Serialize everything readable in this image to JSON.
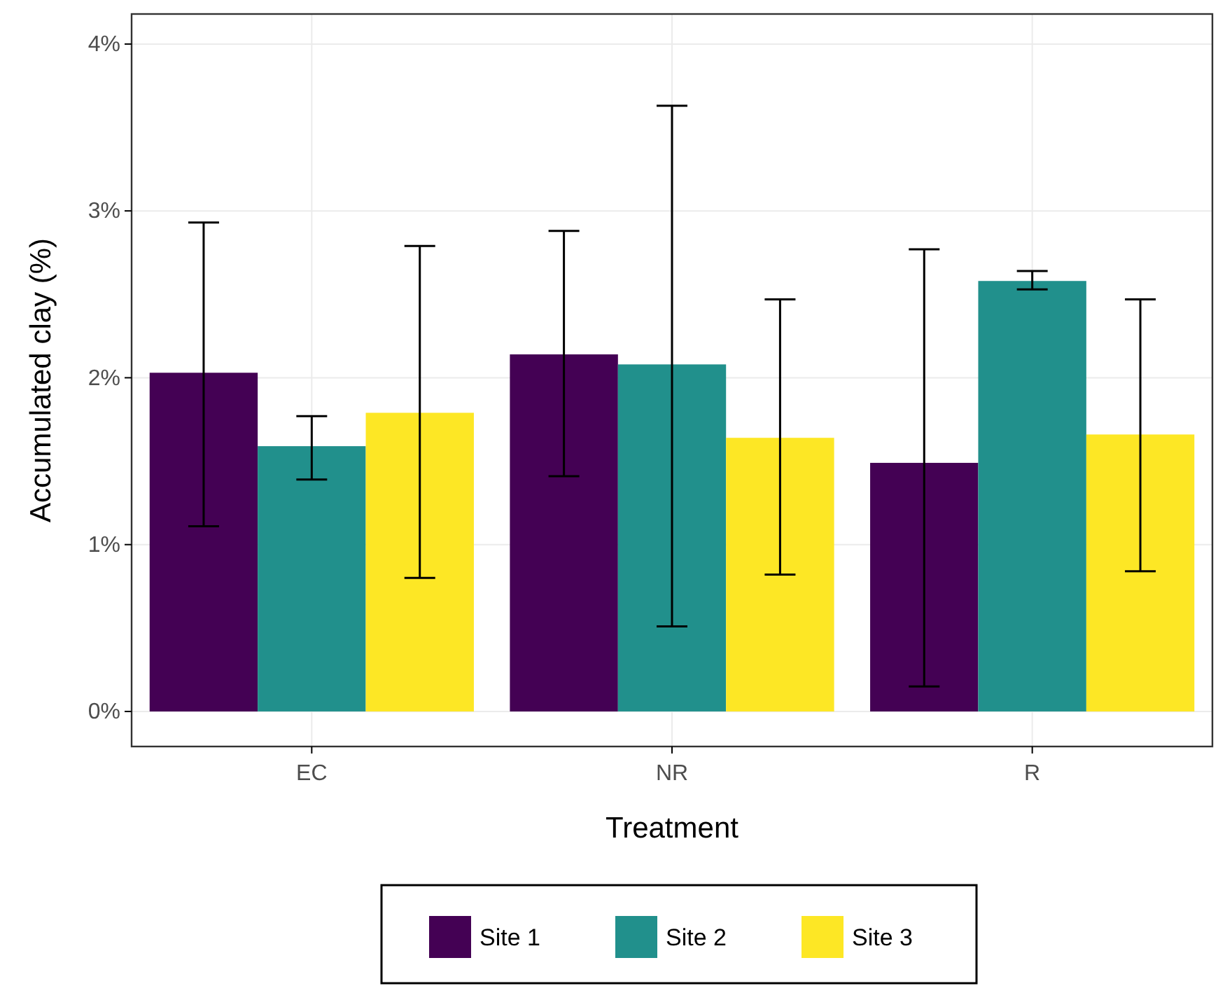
{
  "chart_data": {
    "type": "bar",
    "xlabel": "Treatment",
    "ylabel": "Accumulated clay (%)",
    "categories": [
      "EC",
      "NR",
      "R"
    ],
    "series": [
      {
        "name": "Site 1",
        "color": "#440154",
        "values": [
          2.03,
          2.14,
          1.49
        ],
        "errors": [
          [
            1.11,
            2.93
          ],
          [
            1.41,
            2.88
          ],
          [
            0.15,
            2.77
          ]
        ]
      },
      {
        "name": "Site 2",
        "color": "#21908c",
        "values": [
          1.59,
          2.08,
          2.58
        ],
        "errors": [
          [
            1.39,
            1.77
          ],
          [
            0.51,
            3.63
          ],
          [
            2.53,
            2.64
          ]
        ]
      },
      {
        "name": "Site 3",
        "color": "#fde725",
        "values": [
          1.79,
          1.64,
          1.66
        ],
        "errors": [
          [
            0.8,
            2.79
          ],
          [
            0.82,
            2.47
          ],
          [
            0.84,
            2.47
          ]
        ]
      }
    ],
    "ylim": [
      -0.21,
      4.18
    ],
    "yticks": [
      {
        "value": 0,
        "label": "0%"
      },
      {
        "value": 1,
        "label": "1%"
      },
      {
        "value": 2,
        "label": "2%"
      },
      {
        "value": 3,
        "label": "3%"
      },
      {
        "value": 4,
        "label": "4%"
      }
    ],
    "grid": true,
    "legend": "bottom"
  }
}
